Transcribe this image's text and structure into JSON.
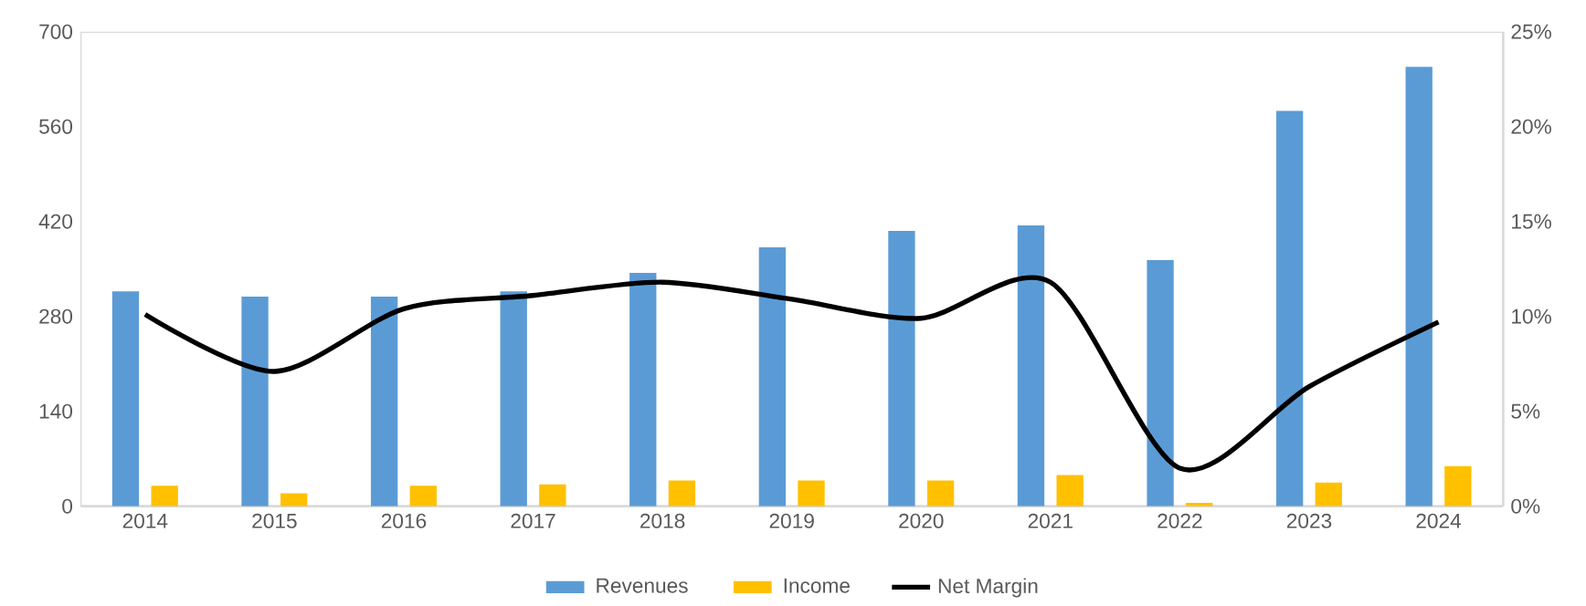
{
  "chart_data": {
    "type": "bar",
    "categories": [
      "2014",
      "2015",
      "2016",
      "2017",
      "2018",
      "2019",
      "2020",
      "2021",
      "2022",
      "2023",
      "2024"
    ],
    "series": [
      {
        "name": "Revenues",
        "color": "#5b9bd5",
        "values": [
          317,
          309,
          309,
          317,
          344,
          382,
          406,
          414,
          363,
          583,
          648
        ]
      },
      {
        "name": "Income",
        "color": "#ffc000",
        "values": [
          30,
          19,
          30,
          32,
          38,
          38,
          38,
          46,
          5,
          35,
          59
        ]
      },
      {
        "name": "Net Margin",
        "color": "#000000",
        "type": "line",
        "axis": "y2",
        "values": [
          10.1,
          7.1,
          10.4,
          11.1,
          11.8,
          10.9,
          9.9,
          11.8,
          2.0,
          6.3,
          9.7
        ]
      }
    ],
    "ylim": [
      0,
      700
    ],
    "yticks": [
      0,
      140,
      280,
      420,
      560,
      700
    ],
    "y2lim": [
      0,
      25
    ],
    "y2ticks": [
      {
        "value": 0,
        "label": "0%"
      },
      {
        "value": 5,
        "label": "5%"
      },
      {
        "value": 10,
        "label": "10%"
      },
      {
        "value": 15,
        "label": "15%"
      },
      {
        "value": 20,
        "label": "20%"
      },
      {
        "value": 25,
        "label": "25%"
      }
    ],
    "legend": "bottom"
  }
}
